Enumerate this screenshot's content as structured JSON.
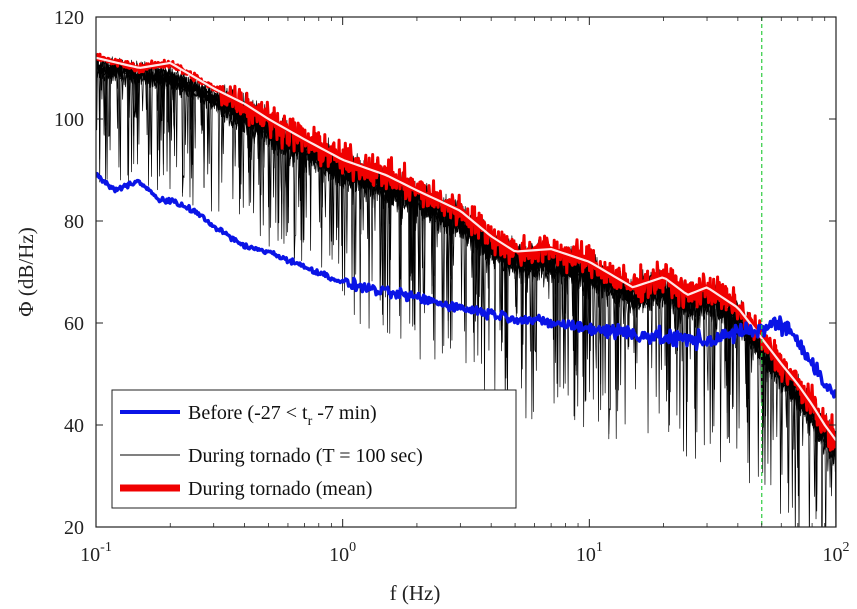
{
  "chart_data": {
    "type": "line",
    "xscale": "log",
    "xlim": [
      0.1,
      100
    ],
    "ylim": [
      20,
      120
    ],
    "xlabel": "f (Hz)",
    "ylabel": "Φ (dB/Hz)",
    "x_ticks": [
      {
        "base": "10",
        "exp": "-1",
        "value": 0.1
      },
      {
        "base": "10",
        "exp": "0",
        "value": 1
      },
      {
        "base": "10",
        "exp": "1",
        "value": 10
      },
      {
        "base": "10",
        "exp": "2",
        "value": 100
      }
    ],
    "y_ticks": [
      "20",
      "40",
      "60",
      "80",
      "100",
      "120"
    ],
    "vertical_line": {
      "x": 50,
      "color": "#2ecc40",
      "style": "dashed"
    },
    "colors": {
      "before": "#0a14e6",
      "during_individual": "#000000",
      "during_mean": "#f00000",
      "mean_center": "#ffe6e6",
      "axes": "#222222"
    },
    "legend": {
      "placement": "bottom-left",
      "entries": [
        {
          "key": "before",
          "text_pre": "Before (-27 < t",
          "text_sub": "r",
          "text_post": " -7 min)"
        },
        {
          "key": "during_individual",
          "text": "During tornado (T = 100 sec)"
        },
        {
          "key": "during_mean",
          "text": "During tornado (mean)"
        }
      ]
    },
    "series": [
      {
        "key": "before",
        "name": "Before (-27 < tr -7 min)",
        "x": [
          0.1,
          0.12,
          0.15,
          0.18,
          0.2,
          0.25,
          0.3,
          0.4,
          0.5,
          0.7,
          1,
          1.5,
          2,
          3,
          5,
          7,
          10,
          15,
          20,
          30,
          40,
          50,
          60,
          70,
          80,
          90,
          100
        ],
        "y": [
          89,
          86,
          88,
          84,
          84,
          82,
          79,
          75,
          74,
          71,
          68,
          66,
          65,
          63,
          61,
          60,
          59,
          58,
          57,
          56.5,
          58,
          59,
          60,
          57,
          52,
          48,
          45
        ]
      },
      {
        "key": "during_mean",
        "name": "During tornado (mean)",
        "x": [
          0.1,
          0.15,
          0.2,
          0.3,
          0.4,
          0.5,
          0.7,
          1,
          1.5,
          2,
          3,
          4,
          5,
          7,
          10,
          15,
          20,
          25,
          30,
          40,
          50,
          60,
          70,
          80,
          90,
          100
        ],
        "y": [
          112,
          110,
          111,
          106,
          103,
          100,
          96,
          92,
          89,
          86,
          82,
          77,
          74,
          74.5,
          72,
          67,
          69,
          65.5,
          67,
          63,
          57,
          52,
          48,
          44,
          40,
          37
        ]
      },
      {
        "key": "during_individual",
        "name": "During tornado (T = 100 sec)",
        "x": [
          0.1,
          0.15,
          0.2,
          0.3,
          0.4,
          0.5,
          0.7,
          1,
          1.5,
          2,
          3,
          4,
          5,
          7,
          10,
          15,
          20,
          25,
          30,
          40,
          50,
          60,
          70,
          80,
          90,
          100
        ],
        "y": [
          110,
          109,
          108,
          104,
          101,
          98,
          94,
          90,
          87,
          84,
          80,
          75,
          72,
          72,
          70,
          65,
          67,
          63.5,
          65,
          61,
          55,
          50,
          46,
          42,
          38,
          35
        ]
      }
    ]
  }
}
